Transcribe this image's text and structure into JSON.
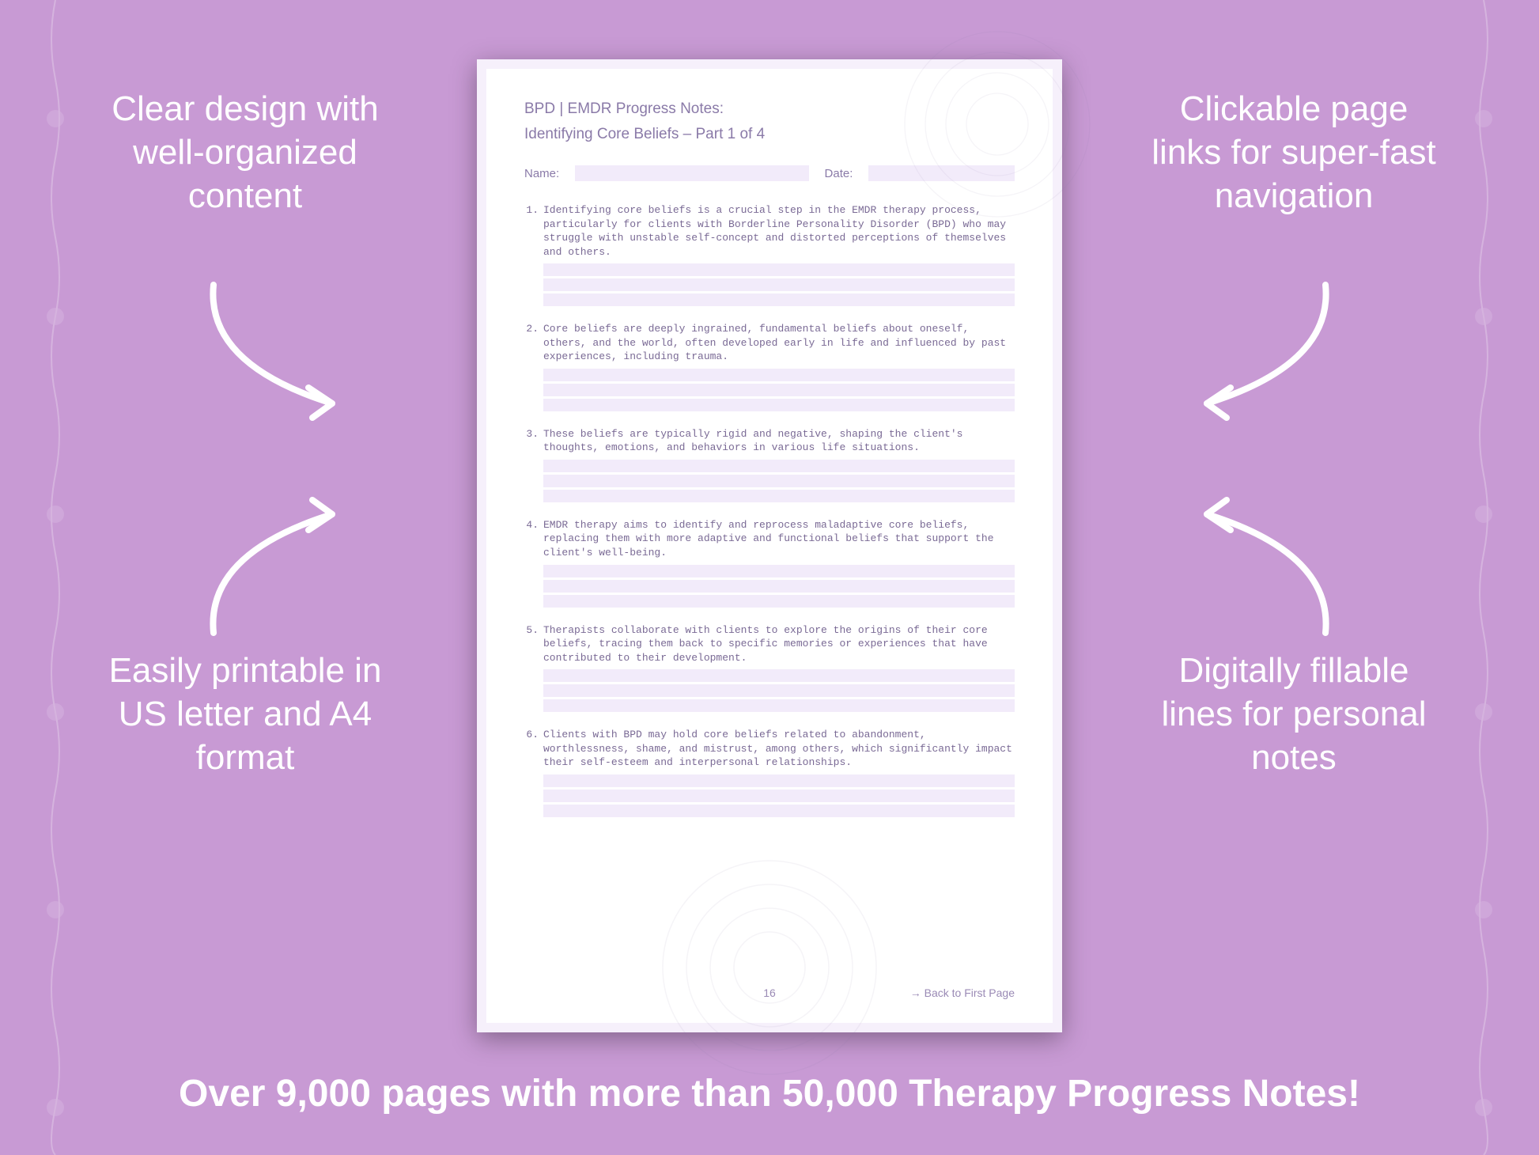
{
  "background_color": "#c89ad4",
  "page_bg": "#f6f0fb",
  "inner_bg": "#ffffff",
  "fill_line_color": "#f2ebfa",
  "text_color": "#8a7aa8",
  "callouts": {
    "top_left": "Clear design with well-organized content",
    "top_right": "Clickable page links for super-fast navigation",
    "bottom_left": "Easily printable in US letter and A4 format",
    "bottom_right": "Digitally fillable lines for personal notes"
  },
  "banner": "Over 9,000 pages with more than 50,000 Therapy Progress Notes!",
  "page": {
    "header": "BPD | EMDR Progress Notes:",
    "subtitle": "Identifying Core Beliefs  – Part 1 of 4",
    "name_label": "Name:",
    "date_label": "Date:",
    "items": [
      "Identifying core beliefs is a crucial step in the EMDR therapy process, particularly for clients with Borderline Personality Disorder (BPD) who may struggle with unstable self-concept and distorted perceptions of themselves and others.",
      "Core beliefs are deeply ingrained, fundamental beliefs about oneself, others, and the world, often developed early in life and influenced by past experiences, including trauma.",
      "These beliefs are typically rigid and negative, shaping the client's thoughts, emotions, and behaviors in various life situations.",
      "EMDR therapy aims to identify and reprocess maladaptive core beliefs, replacing them with more adaptive and functional beliefs that support the client's well-being.",
      "Therapists collaborate with clients to explore the origins of their core beliefs, tracing them back to specific memories or experiences that have contributed to their development.",
      "Clients with BPD may hold core beliefs related to abandonment, worthlessness, shame, and mistrust, among others, which significantly impact their self-esteem and interpersonal relationships."
    ],
    "page_number": "16",
    "back_link": "→ Back to First Page"
  }
}
